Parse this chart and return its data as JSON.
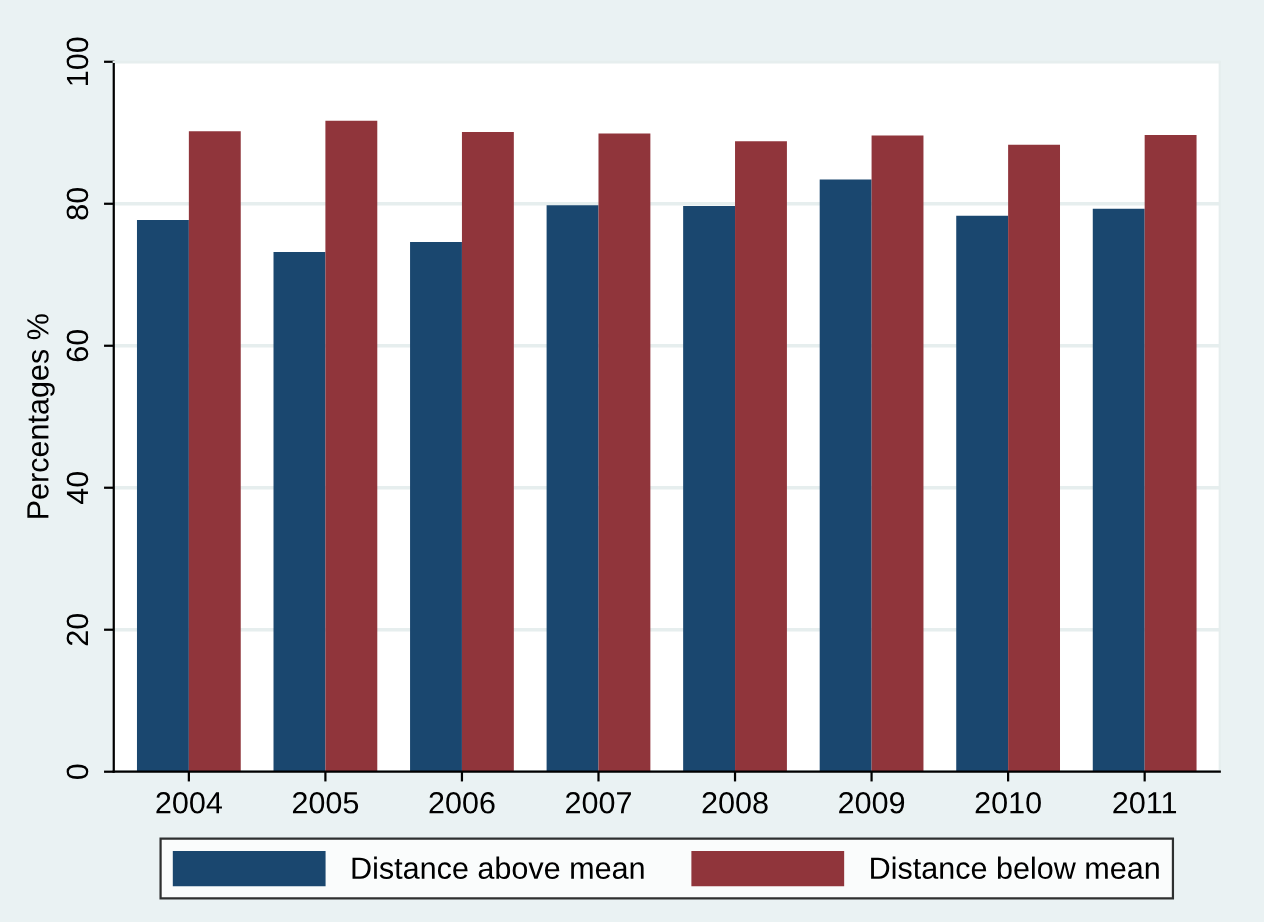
{
  "chart_data": {
    "type": "bar",
    "ylabel": "Percentages %",
    "categories": [
      "2004",
      "2005",
      "2006",
      "2007",
      "2008",
      "2009",
      "2010",
      "2011"
    ],
    "series": [
      {
        "name": "Distance above mean",
        "color": "#1a476f",
        "values": [
          77.7,
          73.2,
          74.6,
          79.8,
          79.7,
          83.4,
          78.3,
          79.3
        ]
      },
      {
        "name": "Distance below mean",
        "color": "#90353b",
        "values": [
          90.2,
          91.7,
          90.1,
          89.9,
          88.8,
          89.6,
          88.3,
          89.7
        ]
      }
    ],
    "ylim": [
      0,
      100
    ],
    "yticks": [
      0,
      20,
      40,
      60,
      80,
      100
    ],
    "grid": "y",
    "legend": "bottom"
  }
}
